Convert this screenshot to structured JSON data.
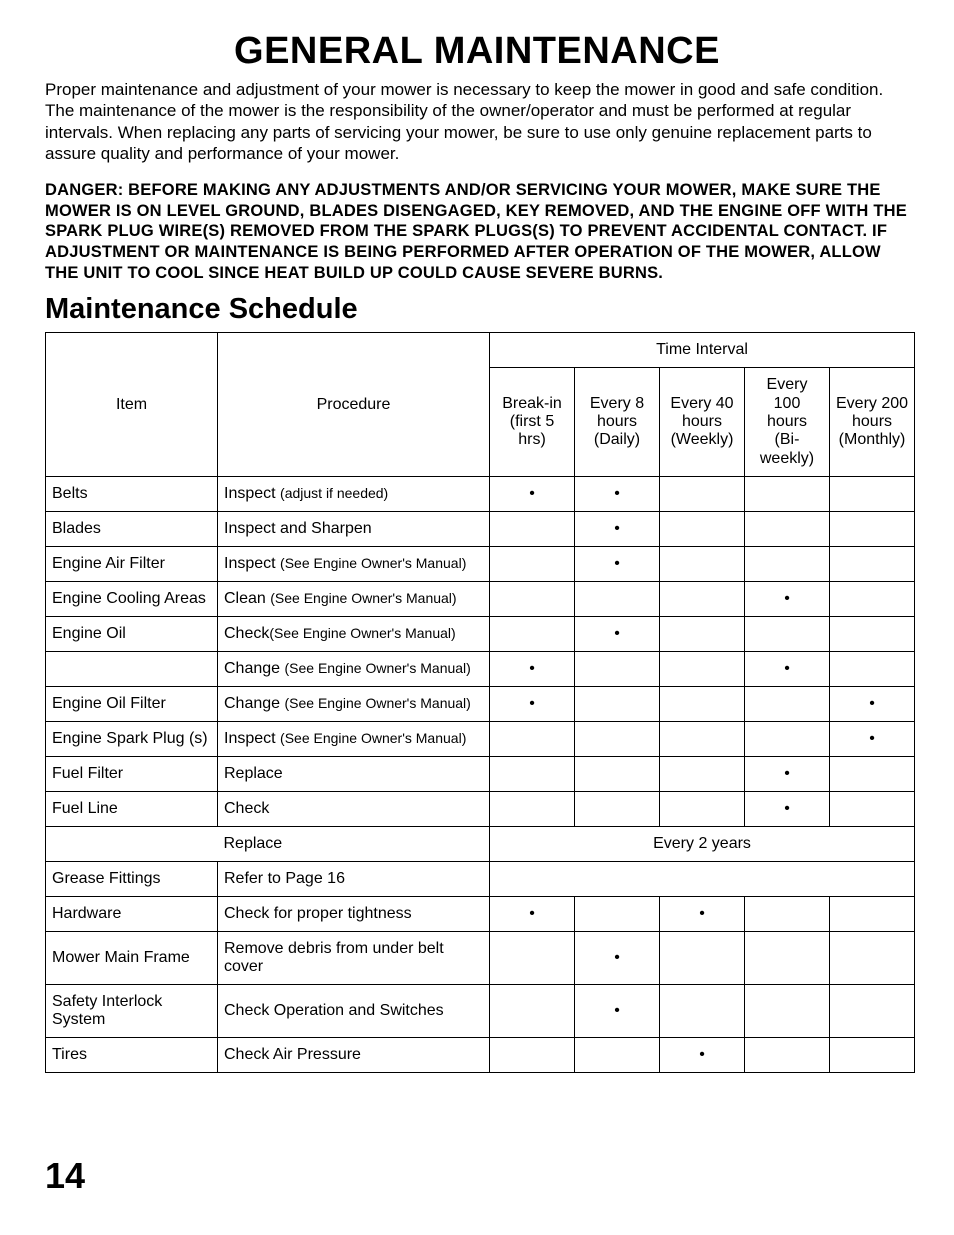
{
  "title": "GENERAL MAINTENANCE",
  "intro": "Proper maintenance and adjustment of your mower is necessary to keep the mower in good and safe condition. The maintenance of the mower is the responsibility of the owner/operator and must be performed at regular intervals.  When replacing any parts of servicing your mower, be sure to use only genuine replacement parts to assure quality and performance of your mower.",
  "danger": "DANGER: BEFORE MAKING ANY ADJUSTMENTS AND/OR SERVICING YOUR MOWER, MAKE SURE THE MOWER IS ON LEVEL GROUND, BLADES DISENGAGED, KEY REMOVED, AND THE ENGINE OFF WITH THE SPARK PLUG WIRE(S) REMOVED FROM THE SPARK PLUGS(S) TO PREVENT ACCIDENTAL CONTACT.  IF ADJUSTMENT OR MAINTENANCE IS BEING PERFORMED AFTER OPERATION OF THE MOWER, ALLOW THE UNIT TO COOL SINCE HEAT BUILD UP COULD CAUSE SEVERE BURNS.",
  "section_heading": "Maintenance Schedule",
  "page_number": "14",
  "dot": "•",
  "table": {
    "time_interval_label": "Time Interval",
    "col_item": "Item",
    "col_procedure": "Procedure",
    "intervals": [
      {
        "l1": "Break-in",
        "l2": "(first 5 hrs)",
        "l3": ""
      },
      {
        "l1": "Every 8",
        "l2": "hours",
        "l3": "(Daily)"
      },
      {
        "l1": "Every 40",
        "l2": "hours",
        "l3": "(Weekly)"
      },
      {
        "l1": "Every 100",
        "l2": "hours",
        "l3": "(Bi-weekly)"
      },
      {
        "l1": "Every 200",
        "l2": "hours",
        "l3": "(Monthly)"
      }
    ],
    "rows": [
      {
        "item": "Belts",
        "proc": "Inspect ",
        "proc_small": "(adjust if needed)",
        "marks": [
          true,
          true,
          false,
          false,
          false
        ]
      },
      {
        "item": "Blades",
        "proc": "Inspect and Sharpen",
        "proc_small": "",
        "marks": [
          false,
          true,
          false,
          false,
          false
        ]
      },
      {
        "item": "Engine Air Filter",
        "proc": "Inspect ",
        "proc_small": "(See Engine Owner's Manual)",
        "marks": [
          false,
          true,
          false,
          false,
          false
        ]
      },
      {
        "item": "Engine Cooling Areas",
        "proc": "Clean ",
        "proc_small": "(See Engine Owner's Manual)",
        "marks": [
          false,
          false,
          false,
          true,
          false
        ]
      },
      {
        "item": "Engine Oil",
        "proc": "Check",
        "proc_small": "(See Engine Owner's Manual)",
        "marks": [
          false,
          true,
          false,
          false,
          false
        ]
      },
      {
        "item": "",
        "proc": "Change ",
        "proc_small": "(See Engine Owner's Manual)",
        "marks": [
          true,
          false,
          false,
          true,
          false
        ]
      },
      {
        "item": "Engine Oil Filter",
        "proc": "Change ",
        "proc_small": "(See Engine Owner's Manual)",
        "marks": [
          true,
          false,
          false,
          false,
          true
        ]
      },
      {
        "item": "Engine Spark Plug (s)",
        "proc": "Inspect ",
        "proc_small": "(See Engine Owner's Manual)",
        "marks": [
          false,
          false,
          false,
          false,
          true
        ]
      },
      {
        "item": "Fuel Filter",
        "proc": "Replace",
        "proc_small": "",
        "marks": [
          false,
          false,
          false,
          true,
          false
        ]
      },
      {
        "item": "Fuel Line",
        "proc": "Check",
        "proc_small": "",
        "marks": [
          false,
          false,
          false,
          true,
          false
        ]
      },
      {
        "item": "",
        "proc": "Replace",
        "proc_small": "",
        "merged_note": "Every 2 years"
      },
      {
        "item": "Grease Fittings",
        "proc": "Refer to Page 16",
        "proc_small": "",
        "blank_merged": true
      },
      {
        "item": "Hardware",
        "proc": "Check for proper tightness",
        "proc_small": "",
        "marks": [
          true,
          false,
          true,
          false,
          false
        ]
      },
      {
        "item": "Mower Main Frame",
        "proc": "Remove debris from under belt cover",
        "proc_small": "",
        "marks": [
          false,
          true,
          false,
          false,
          false
        ]
      },
      {
        "item": "Safety Interlock System",
        "proc": "Check Operation and Switches",
        "proc_small": "",
        "marks": [
          false,
          true,
          false,
          false,
          false
        ]
      },
      {
        "item": "Tires",
        "proc": "Check Air Pressure",
        "proc_small": "",
        "marks": [
          false,
          false,
          true,
          false,
          false
        ]
      }
    ]
  }
}
